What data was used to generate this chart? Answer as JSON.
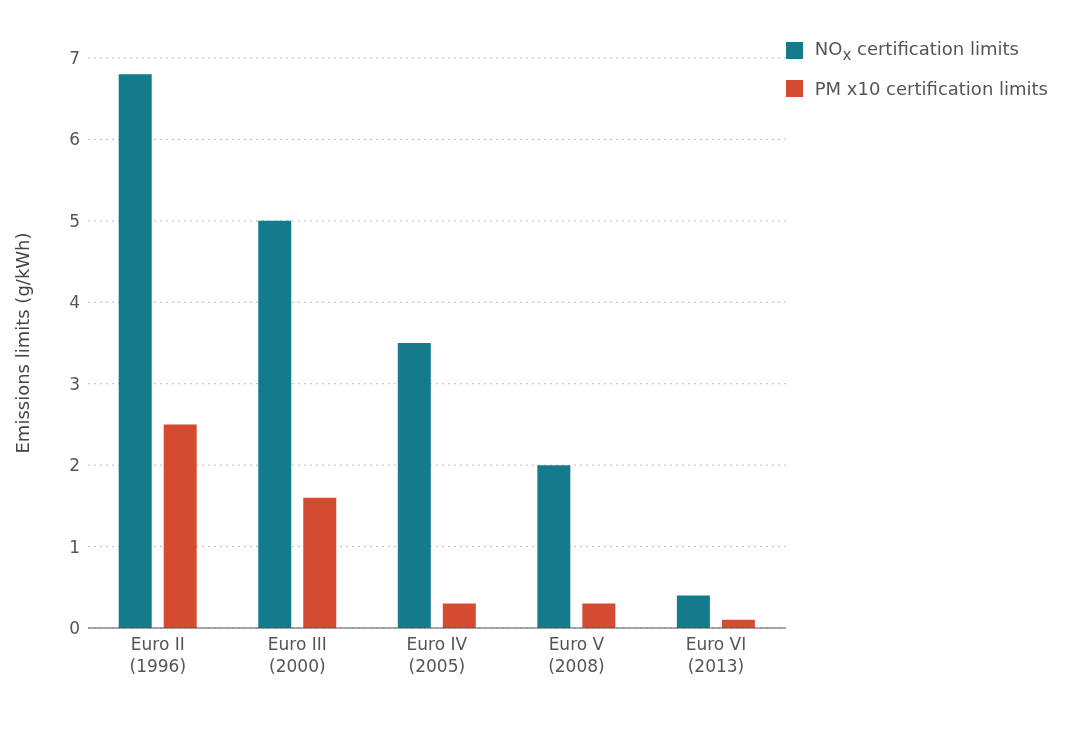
{
  "chart_data": {
    "type": "bar",
    "ylabel": "Emissions limits (g/kWh)",
    "categories": [
      "Euro II\n(1996)",
      "Euro III\n(2000)",
      "Euro IV\n(2005)",
      "Euro V\n(2008)",
      "Euro VI\n(2013)"
    ],
    "series": [
      {
        "name": "NO$_{x}$ certification limits",
        "color": "#137b8c",
        "values": [
          6.8,
          5.0,
          3.5,
          2.0,
          0.4
        ]
      },
      {
        "name": "PM x10 certification limits",
        "color": "#d54b31",
        "values": [
          2.5,
          1.6,
          0.3,
          0.3,
          0.1
        ]
      }
    ],
    "ylim": [
      0,
      7
    ],
    "yticks": [
      0,
      1,
      2,
      3,
      4,
      5,
      6,
      7
    ],
    "grid": "y",
    "legend": "top right"
  }
}
